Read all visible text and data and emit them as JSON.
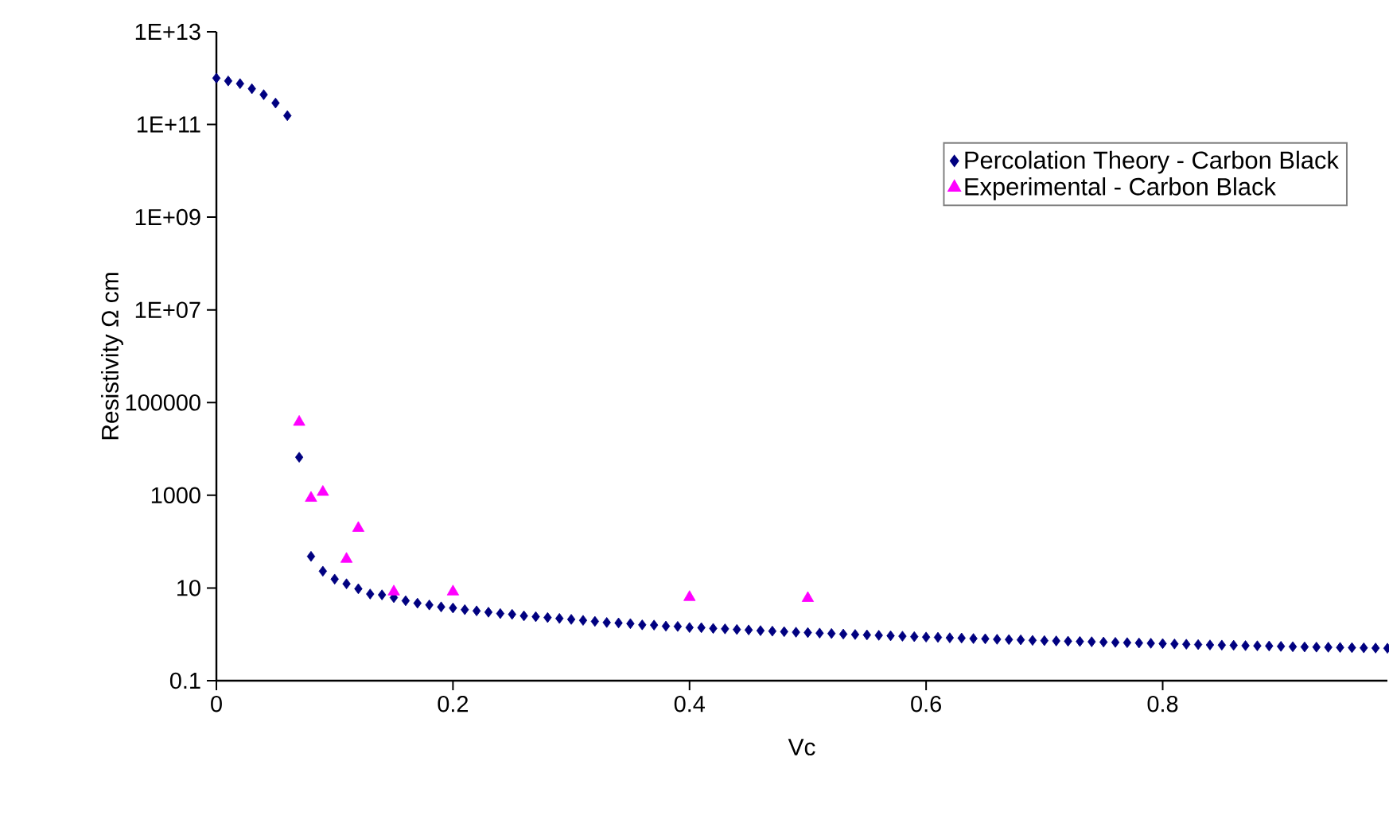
{
  "chart_data": {
    "type": "scatter",
    "xlabel": "Vc",
    "ylabel": "Resistivity Ω cm",
    "log": "y",
    "legend": "top right",
    "grid": false,
    "xlim": [
      0,
      0.99
    ],
    "xticks": [
      0,
      0.2,
      0.4,
      0.6,
      0.8
    ],
    "ylim": [
      0.1,
      10000000000000.0
    ],
    "yticks": [
      0.1,
      10,
      1000,
      100000,
      {
        "value": 10000000.0,
        "label": "1E+07"
      },
      {
        "value": 1000000000.0,
        "label": "1E+09"
      },
      {
        "value": 100000000000.0,
        "label": "1E+11"
      },
      {
        "value": 10000000000000.0,
        "label": "1E+13"
      }
    ],
    "series": [
      {
        "name": "Percolation Theory - Carbon Black",
        "color": "#000080",
        "marker": "diamond",
        "x": [
          0,
          0.01,
          0.02,
          0.03,
          0.04,
          0.05,
          0.06,
          0.07,
          0.08,
          0.09,
          0.1,
          0.11,
          0.12,
          0.13,
          0.14,
          0.15,
          0.16,
          0.17,
          0.18,
          0.19,
          0.2,
          0.21,
          0.22,
          0.23,
          0.24,
          0.25,
          0.26,
          0.27,
          0.28,
          0.29,
          0.3,
          0.31,
          0.32,
          0.33,
          0.34,
          0.35,
          0.36,
          0.37,
          0.38,
          0.39,
          0.4,
          0.41,
          0.42,
          0.43,
          0.44,
          0.45,
          0.46,
          0.47,
          0.48,
          0.49,
          0.5,
          0.51,
          0.52,
          0.53,
          0.54,
          0.55,
          0.56,
          0.57,
          0.58,
          0.59,
          0.6,
          0.61,
          0.62,
          0.63,
          0.64,
          0.65,
          0.66,
          0.67,
          0.68,
          0.69,
          0.7,
          0.71,
          0.72,
          0.73,
          0.74,
          0.75,
          0.76,
          0.77,
          0.78,
          0.79,
          0.8,
          0.81,
          0.82,
          0.83,
          0.84,
          0.85,
          0.86,
          0.87,
          0.88,
          0.89,
          0.9,
          0.91,
          0.92,
          0.93,
          0.94,
          0.95,
          0.96,
          0.97,
          0.98,
          0.99
        ],
        "values": [
          1000000000000.0,
          870000000000.0,
          760000000000.0,
          590000000000.0,
          440000000000.0,
          290000000000.0,
          155000000000.0,
          6600,
          48,
          23,
          15.5,
          12.3,
          9.6,
          7.4,
          7.1,
          6.2,
          5.3,
          4.7,
          4.3,
          3.9,
          3.7,
          3.4,
          3.2,
          3.0,
          2.8,
          2.7,
          2.5,
          2.4,
          2.3,
          2.2,
          2.1,
          2.0,
          1.9,
          1.8,
          1.76,
          1.7,
          1.6,
          1.58,
          1.5,
          1.48,
          1.4,
          1.39,
          1.34,
          1.31,
          1.27,
          1.24,
          1.2,
          1.17,
          1.14,
          1.11,
          1.09,
          1.06,
          1.04,
          1.01,
          0.99,
          0.97,
          0.95,
          0.93,
          0.91,
          0.89,
          0.87,
          0.86,
          0.84,
          0.83,
          0.81,
          0.8,
          0.78,
          0.77,
          0.76,
          0.74,
          0.73,
          0.72,
          0.71,
          0.7,
          0.69,
          0.68,
          0.67,
          0.66,
          0.65,
          0.64,
          0.63,
          0.62,
          0.61,
          0.6,
          0.59,
          0.585,
          0.58,
          0.57,
          0.565,
          0.56,
          0.55,
          0.54,
          0.535,
          0.53,
          0.525,
          0.52,
          0.515,
          0.51,
          0.505,
          0.5
        ]
      },
      {
        "name": "Experimental - Carbon Black",
        "color": "#ff00ff",
        "marker": "triangle",
        "x": [
          0.07,
          0.08,
          0.09,
          0.11,
          0.12,
          0.15,
          0.2,
          0.4,
          0.5
        ],
        "values": [
          38000,
          870,
          1170,
          42,
          195,
          8.3,
          8.3,
          6.3,
          6.0
        ]
      }
    ]
  }
}
